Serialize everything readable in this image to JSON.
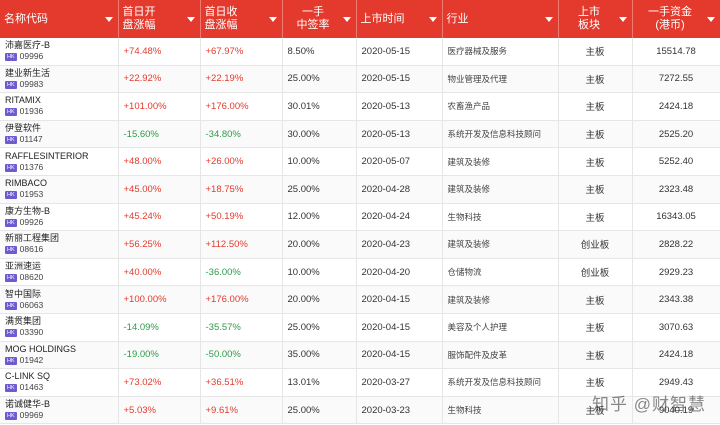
{
  "headers": [
    {
      "line1": "名称代码",
      "line2": ""
    },
    {
      "line1": "首日开",
      "line2": "盘涨幅"
    },
    {
      "line1": "首日收",
      "line2": "盘涨幅"
    },
    {
      "line1": "一手",
      "line2": "中签率"
    },
    {
      "line1": "上市时间",
      "line2": ""
    },
    {
      "line1": "行业",
      "line2": ""
    },
    {
      "line1": "上市",
      "line2": "板块"
    },
    {
      "line1": "一手资金",
      "line2": "(港币)"
    }
  ],
  "badge": "HK",
  "rows": [
    {
      "name": "沛嘉医疗-B",
      "code": "09996",
      "open": "+74.48%",
      "close": "+67.97%",
      "rate": "8.50%",
      "date": "2020-05-15",
      "industry": "医疗器械及服务",
      "board": "主板",
      "funds": "15514.78"
    },
    {
      "name": "建业新生活",
      "code": "09983",
      "open": "+22.92%",
      "close": "+22.19%",
      "rate": "25.00%",
      "date": "2020-05-15",
      "industry": "物业管理及代理",
      "board": "主板",
      "funds": "7272.55"
    },
    {
      "name": "RITAMIX",
      "code": "01936",
      "open": "+101.00%",
      "close": "+176.00%",
      "rate": "30.01%",
      "date": "2020-05-13",
      "industry": "农畜渔产品",
      "board": "主板",
      "funds": "2424.18"
    },
    {
      "name": "伊登软件",
      "code": "01147",
      "open": "-15.60%",
      "close": "-34.80%",
      "rate": "30.00%",
      "date": "2020-05-13",
      "industry": "系统开发及信息科技顾问",
      "board": "主板",
      "funds": "2525.20"
    },
    {
      "name": "RAFFLESINTERIOR",
      "code": "01376",
      "open": "+48.00%",
      "close": "+26.00%",
      "rate": "10.00%",
      "date": "2020-05-07",
      "industry": "建筑及装修",
      "board": "主板",
      "funds": "5252.40"
    },
    {
      "name": "RIMBACO",
      "code": "01953",
      "open": "+45.00%",
      "close": "+18.75%",
      "rate": "25.00%",
      "date": "2020-04-28",
      "industry": "建筑及装修",
      "board": "主板",
      "funds": "2323.48"
    },
    {
      "name": "康方生物-B",
      "code": "09926",
      "open": "+45.24%",
      "close": "+50.19%",
      "rate": "12.00%",
      "date": "2020-04-24",
      "industry": "生物科技",
      "board": "主板",
      "funds": "16343.05"
    },
    {
      "name": "新丽工程集团",
      "code": "08616",
      "open": "+56.25%",
      "close": "+112.50%",
      "rate": "20.00%",
      "date": "2020-04-23",
      "industry": "建筑及装修",
      "board": "创业板",
      "funds": "2828.22"
    },
    {
      "name": "亚洲速运",
      "code": "08620",
      "open": "+40.00%",
      "close": "-36.00%",
      "rate": "10.00%",
      "date": "2020-04-20",
      "industry": "仓储物流",
      "board": "创业板",
      "funds": "2929.23"
    },
    {
      "name": "智中国际",
      "code": "06063",
      "open": "+100.00%",
      "close": "+176.00%",
      "rate": "20.00%",
      "date": "2020-04-15",
      "industry": "建筑及装修",
      "board": "主板",
      "funds": "2343.38"
    },
    {
      "name": "满贯集团",
      "code": "03390",
      "open": "-14.09%",
      "close": "-35.57%",
      "rate": "25.00%",
      "date": "2020-04-15",
      "industry": "美容及个人护理",
      "board": "主板",
      "funds": "3070.63"
    },
    {
      "name": "MOG HOLDINGS",
      "code": "01942",
      "open": "-19.00%",
      "close": "-50.00%",
      "rate": "35.00%",
      "date": "2020-04-15",
      "industry": "服饰配件及皮革",
      "board": "主板",
      "funds": "2424.18"
    },
    {
      "name": "C-LINK SQ",
      "code": "01463",
      "open": "+73.02%",
      "close": "+36.51%",
      "rate": "13.01%",
      "date": "2020-03-27",
      "industry": "系统开发及信息科技顾问",
      "board": "主板",
      "funds": "2949.43"
    },
    {
      "name": "诺诚健华-B",
      "code": "09969",
      "open": "+5.03%",
      "close": "+9.61%",
      "rate": "25.00%",
      "date": "2020-03-23",
      "industry": "生物科技",
      "board": "主板",
      "funds": "9040.19"
    }
  ],
  "watermark": "知乎 @财智慧"
}
